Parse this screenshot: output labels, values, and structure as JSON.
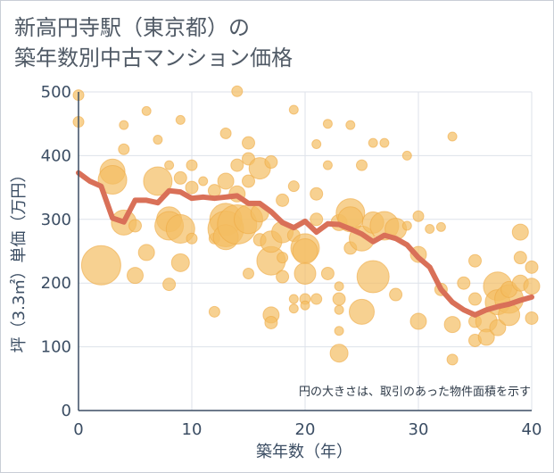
{
  "chart_data": {
    "type": "scatter",
    "title_lines": [
      "新高円寺駅（東京都）の",
      "築年数別中古マンション価格"
    ],
    "xlabel": "築年数（年）",
    "ylabel": "坪（3.3㎡）単価（万円）",
    "xlim": [
      0,
      40
    ],
    "ylim": [
      0,
      500
    ],
    "xticks": [
      0,
      10,
      20,
      30,
      40
    ],
    "yticks": [
      0,
      100,
      200,
      300,
      400,
      500
    ],
    "grid": true,
    "note": "円の大きさは、取引のあった物件面積を示す",
    "colors": {
      "bubble": "#f3bd63",
      "line": "#d97058",
      "grid": "#dde2ea",
      "axis": "#3b4d63"
    },
    "line_series": {
      "x": [
        0,
        1,
        2,
        3,
        4,
        5,
        6,
        7,
        8,
        9,
        10,
        11,
        12,
        13,
        14,
        15,
        16,
        17,
        18,
        19,
        20,
        21,
        22,
        23,
        24,
        25,
        26,
        27,
        28,
        29,
        30,
        31,
        32,
        33,
        34,
        35,
        36,
        37,
        38,
        39,
        40
      ],
      "y": [
        373,
        360,
        352,
        302,
        296,
        330,
        330,
        326,
        345,
        343,
        333,
        335,
        333,
        335,
        337,
        325,
        325,
        312,
        295,
        287,
        297,
        280,
        293,
        292,
        285,
        277,
        265,
        275,
        270,
        260,
        240,
        225,
        190,
        170,
        158,
        150,
        158,
        163,
        167,
        173,
        178
      ]
    },
    "bubbles": [
      {
        "x": 0,
        "y": 495,
        "s": 6
      },
      {
        "x": 0,
        "y": 453,
        "s": 6
      },
      {
        "x": 2,
        "y": 228,
        "s": 22
      },
      {
        "x": 3,
        "y": 375,
        "s": 14
      },
      {
        "x": 3,
        "y": 362,
        "s": 16
      },
      {
        "x": 4,
        "y": 295,
        "s": 14
      },
      {
        "x": 4,
        "y": 410,
        "s": 6
      },
      {
        "x": 4,
        "y": 448,
        "s": 5
      },
      {
        "x": 5,
        "y": 290,
        "s": 7
      },
      {
        "x": 5,
        "y": 212,
        "s": 9
      },
      {
        "x": 6,
        "y": 248,
        "s": 9
      },
      {
        "x": 6,
        "y": 470,
        "s": 5
      },
      {
        "x": 7,
        "y": 360,
        "s": 16
      },
      {
        "x": 7,
        "y": 425,
        "s": 5
      },
      {
        "x": 8,
        "y": 300,
        "s": 14
      },
      {
        "x": 8,
        "y": 290,
        "s": 16
      },
      {
        "x": 8,
        "y": 198,
        "s": 7
      },
      {
        "x": 8,
        "y": 385,
        "s": 5
      },
      {
        "x": 9,
        "y": 285,
        "s": 16
      },
      {
        "x": 9,
        "y": 232,
        "s": 10
      },
      {
        "x": 9,
        "y": 365,
        "s": 7
      },
      {
        "x": 9,
        "y": 456,
        "s": 5
      },
      {
        "x": 10,
        "y": 350,
        "s": 7
      },
      {
        "x": 10,
        "y": 385,
        "s": 6
      },
      {
        "x": 10,
        "y": 270,
        "s": 6
      },
      {
        "x": 11,
        "y": 360,
        "s": 5
      },
      {
        "x": 12,
        "y": 345,
        "s": 7
      },
      {
        "x": 12,
        "y": 155,
        "s": 6
      },
      {
        "x": 12,
        "y": 270,
        "s": 6
      },
      {
        "x": 13,
        "y": 300,
        "s": 18
      },
      {
        "x": 13,
        "y": 285,
        "s": 20
      },
      {
        "x": 13,
        "y": 272,
        "s": 14
      },
      {
        "x": 13,
        "y": 435,
        "s": 6
      },
      {
        "x": 13,
        "y": 360,
        "s": 9
      },
      {
        "x": 14,
        "y": 292,
        "s": 22
      },
      {
        "x": 14,
        "y": 501,
        "s": 6
      },
      {
        "x": 14,
        "y": 385,
        "s": 7
      },
      {
        "x": 14,
        "y": 340,
        "s": 9
      },
      {
        "x": 15,
        "y": 300,
        "s": 16
      },
      {
        "x": 15,
        "y": 420,
        "s": 7
      },
      {
        "x": 15,
        "y": 395,
        "s": 7
      },
      {
        "x": 15,
        "y": 360,
        "s": 7
      },
      {
        "x": 15,
        "y": 215,
        "s": 6
      },
      {
        "x": 16,
        "y": 380,
        "s": 12
      },
      {
        "x": 16,
        "y": 310,
        "s": 10
      },
      {
        "x": 16,
        "y": 268,
        "s": 7
      },
      {
        "x": 17,
        "y": 235,
        "s": 16
      },
      {
        "x": 17,
        "y": 265,
        "s": 12
      },
      {
        "x": 17,
        "y": 150,
        "s": 9
      },
      {
        "x": 17,
        "y": 390,
        "s": 7
      },
      {
        "x": 17,
        "y": 138,
        "s": 7
      },
      {
        "x": 18,
        "y": 280,
        "s": 12
      },
      {
        "x": 18,
        "y": 210,
        "s": 7
      },
      {
        "x": 18,
        "y": 330,
        "s": 7
      },
      {
        "x": 18,
        "y": 240,
        "s": 6
      },
      {
        "x": 19,
        "y": 472,
        "s": 5
      },
      {
        "x": 19,
        "y": 352,
        "s": 6
      },
      {
        "x": 19,
        "y": 275,
        "s": 7
      },
      {
        "x": 19,
        "y": 175,
        "s": 5
      },
      {
        "x": 19,
        "y": 160,
        "s": 5
      },
      {
        "x": 20,
        "y": 255,
        "s": 16
      },
      {
        "x": 20,
        "y": 250,
        "s": 14
      },
      {
        "x": 20,
        "y": 215,
        "s": 12
      },
      {
        "x": 20,
        "y": 175,
        "s": 6
      },
      {
        "x": 20,
        "y": 165,
        "s": 5
      },
      {
        "x": 21,
        "y": 340,
        "s": 7
      },
      {
        "x": 21,
        "y": 418,
        "s": 5
      },
      {
        "x": 21,
        "y": 300,
        "s": 7
      },
      {
        "x": 21,
        "y": 175,
        "s": 6
      },
      {
        "x": 22,
        "y": 385,
        "s": 5
      },
      {
        "x": 22,
        "y": 450,
        "s": 5
      },
      {
        "x": 22,
        "y": 215,
        "s": 7
      },
      {
        "x": 23,
        "y": 295,
        "s": 9
      },
      {
        "x": 23,
        "y": 195,
        "s": 5
      },
      {
        "x": 23,
        "y": 175,
        "s": 7
      },
      {
        "x": 23,
        "y": 158,
        "s": 5
      },
      {
        "x": 23,
        "y": 125,
        "s": 5
      },
      {
        "x": 23,
        "y": 90,
        "s": 10
      },
      {
        "x": 24,
        "y": 310,
        "s": 16
      },
      {
        "x": 24,
        "y": 300,
        "s": 14
      },
      {
        "x": 24,
        "y": 255,
        "s": 7
      },
      {
        "x": 24,
        "y": 448,
        "s": 5
      },
      {
        "x": 25,
        "y": 270,
        "s": 14
      },
      {
        "x": 25,
        "y": 155,
        "s": 14
      },
      {
        "x": 25,
        "y": 385,
        "s": 6
      },
      {
        "x": 26,
        "y": 210,
        "s": 18
      },
      {
        "x": 26,
        "y": 295,
        "s": 12
      },
      {
        "x": 26,
        "y": 420,
        "s": 5
      },
      {
        "x": 27,
        "y": 290,
        "s": 16
      },
      {
        "x": 27,
        "y": 420,
        "s": 5
      },
      {
        "x": 28,
        "y": 285,
        "s": 12
      },
      {
        "x": 28,
        "y": 182,
        "s": 7
      },
      {
        "x": 29,
        "y": 400,
        "s": 5
      },
      {
        "x": 29,
        "y": 290,
        "s": 5
      },
      {
        "x": 30,
        "y": 245,
        "s": 9
      },
      {
        "x": 30,
        "y": 305,
        "s": 6
      },
      {
        "x": 30,
        "y": 140,
        "s": 9
      },
      {
        "x": 31,
        "y": 285,
        "s": 5
      },
      {
        "x": 32,
        "y": 190,
        "s": 7
      },
      {
        "x": 32,
        "y": 288,
        "s": 5
      },
      {
        "x": 33,
        "y": 135,
        "s": 9
      },
      {
        "x": 33,
        "y": 430,
        "s": 5
      },
      {
        "x": 33,
        "y": 80,
        "s": 6
      },
      {
        "x": 34,
        "y": 200,
        "s": 7
      },
      {
        "x": 35,
        "y": 235,
        "s": 7
      },
      {
        "x": 35,
        "y": 175,
        "s": 7
      },
      {
        "x": 35,
        "y": 140,
        "s": 7
      },
      {
        "x": 35,
        "y": 110,
        "s": 7
      },
      {
        "x": 36,
        "y": 140,
        "s": 12
      },
      {
        "x": 36,
        "y": 115,
        "s": 9
      },
      {
        "x": 37,
        "y": 195,
        "s": 16
      },
      {
        "x": 37,
        "y": 170,
        "s": 14
      },
      {
        "x": 37,
        "y": 130,
        "s": 9
      },
      {
        "x": 38,
        "y": 175,
        "s": 16
      },
      {
        "x": 38,
        "y": 150,
        "s": 12
      },
      {
        "x": 38,
        "y": 190,
        "s": 9
      },
      {
        "x": 39,
        "y": 280,
        "s": 9
      },
      {
        "x": 39,
        "y": 240,
        "s": 7
      },
      {
        "x": 39,
        "y": 200,
        "s": 9
      },
      {
        "x": 40,
        "y": 225,
        "s": 7
      },
      {
        "x": 40,
        "y": 195,
        "s": 9
      },
      {
        "x": 40,
        "y": 145,
        "s": 7
      }
    ]
  }
}
